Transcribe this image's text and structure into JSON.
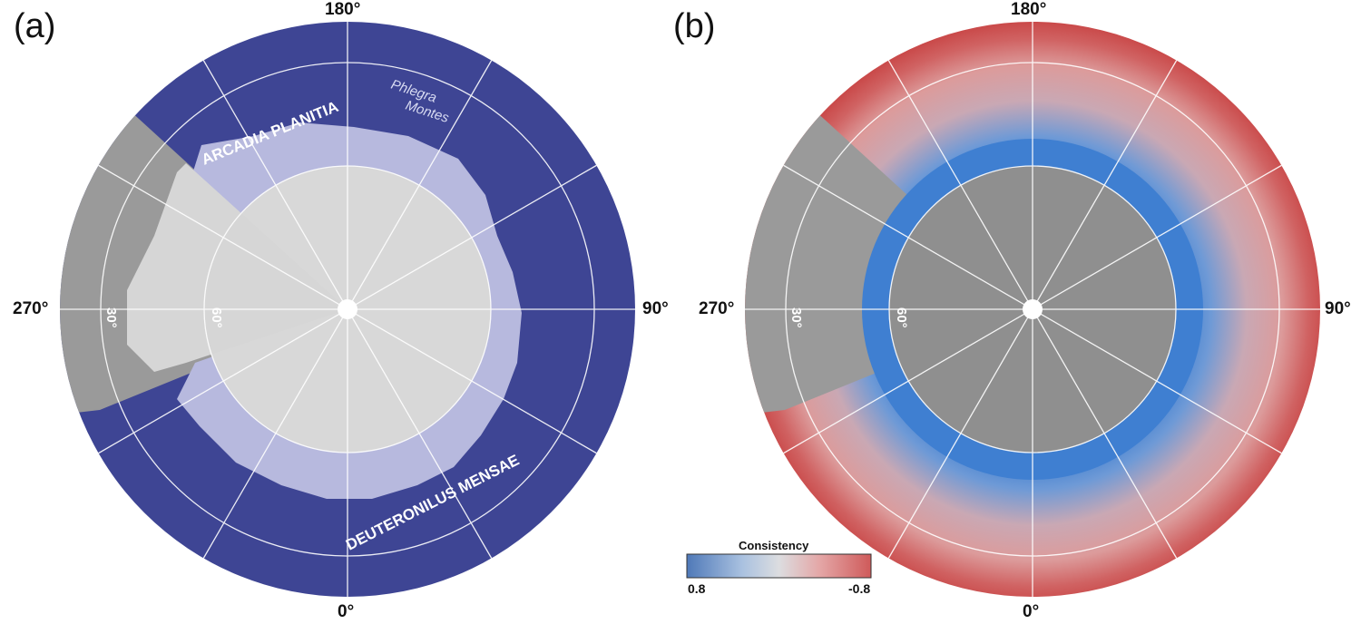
{
  "panels": [
    {
      "letter": "(a)",
      "lon_labels": {
        "top": "180°",
        "bottom": "0°",
        "left": "270°",
        "right": "90°"
      },
      "lat_labels": [
        "30°",
        "60°"
      ],
      "region_labels": [
        "ARCADIA PLANITIA",
        "Phlegra",
        "Montes",
        "DEUTERONILUS MENSAE"
      ]
    },
    {
      "letter": "(b)",
      "lon_labels": {
        "top": "180°",
        "bottom": "0°",
        "left": "270°",
        "right": "90°"
      },
      "lat_labels": [
        "30°",
        "60°"
      ]
    }
  ],
  "colorbar": {
    "title": "Consistency",
    "min_label": "0.8",
    "max_label": "-0.8",
    "colors": [
      "#4f79b8",
      "#a9c1e0",
      "#dcdde0",
      "#e4a7a7",
      "#cf5a5a"
    ]
  },
  "colors": {
    "study_area": "#3e4594",
    "ice_region": "#b7b9de",
    "basemap": "#9a9a9a",
    "basemap_light": "#d8d8d8",
    "consistency_high": "#3f7fd1",
    "consistency_low": "#cc4a4a"
  }
}
